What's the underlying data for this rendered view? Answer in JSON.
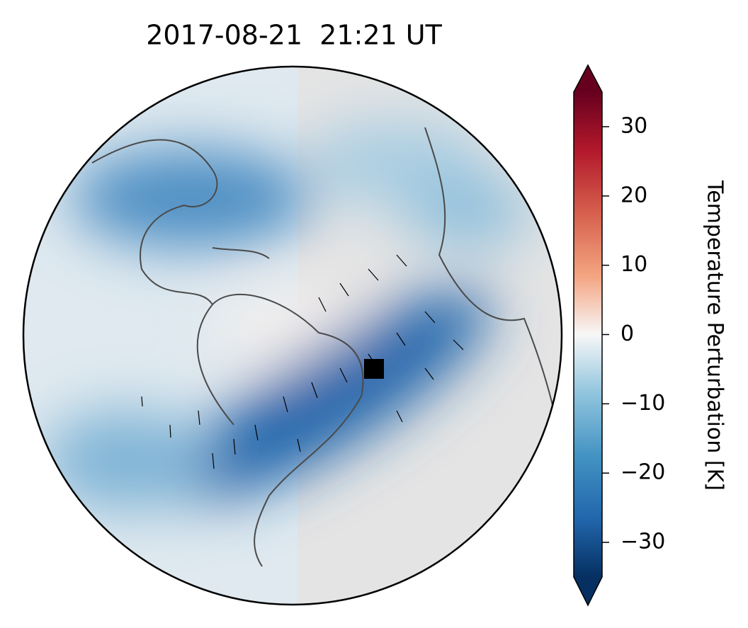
{
  "map": {
    "title": "2017-08-21  21:21 UT",
    "colorbar": {
      "label": "Temperature Perturbation [K]",
      "lim": [
        -35,
        35
      ],
      "ticks": [
        {
          "value": -30,
          "label": "−30"
        },
        {
          "value": -20,
          "label": "−20"
        },
        {
          "value": -10,
          "label": "−10"
        },
        0,
        10,
        20,
        30
      ]
    }
  }
}
